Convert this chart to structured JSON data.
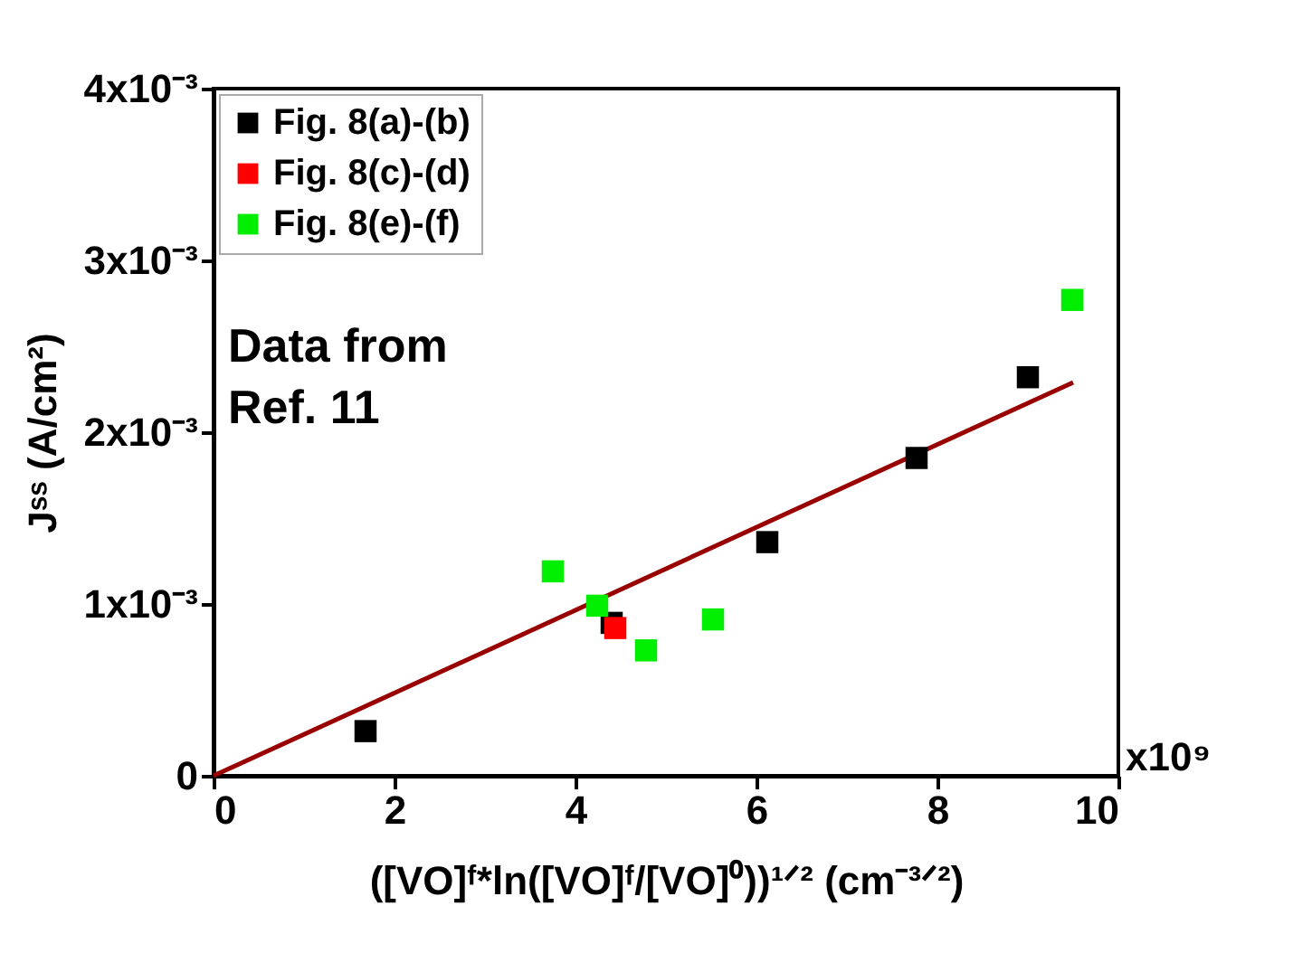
{
  "chart_data": {
    "type": "scatter",
    "xlabel": "([VO]ᶠ*ln([VO]ᶠ/[VO]⁰))¹ᐟ² (cm⁻³ᐟ²)",
    "ylabel": "Jˢˢ (A/cm²)",
    "series": [
      {
        "name": "Fig. 8(a)-(b)",
        "color": "#000000",
        "x": [
          1.68,
          4.4,
          6.12,
          7.77,
          9.0
        ],
        "values": [
          0.00026,
          0.00089,
          0.00136,
          0.00185,
          0.00232
        ]
      },
      {
        "name": "Fig. 8(c)-(d)",
        "color": "#ff0000",
        "x": [
          4.44
        ],
        "values": [
          0.00086
        ]
      },
      {
        "name": "Fig. 8(e)-(f)",
        "color": "#00ee00",
        "x": [
          3.75,
          4.24,
          4.78,
          5.52,
          9.49
        ],
        "values": [
          0.00119,
          0.00099,
          0.00073,
          0.00091,
          0.00277
        ]
      },
      {
        "type": "line",
        "marker": "none",
        "color": "#990000",
        "x": [
          0,
          9.5
        ],
        "values": [
          0,
          0.00229
        ]
      }
    ],
    "xlim": [
      0,
      10
    ],
    "xticks": [
      0,
      2,
      4,
      6,
      8,
      10
    ],
    "ylim": [
      0,
      0.004
    ],
    "yticks": [
      {
        "value": 0,
        "label": "0"
      },
      {
        "value": 0.001,
        "label": "1x10⁻³"
      },
      {
        "value": 0.002,
        "label": "2x10⁻³"
      },
      {
        "value": 0.003,
        "label": "3x10⁻³"
      },
      {
        "value": 0.004,
        "label": "4x10⁻³"
      }
    ],
    "annotations": [
      "Data from\nRef. 11",
      "x10⁹"
    ],
    "marker": "square",
    "legend": "top left",
    "grid": false
  }
}
